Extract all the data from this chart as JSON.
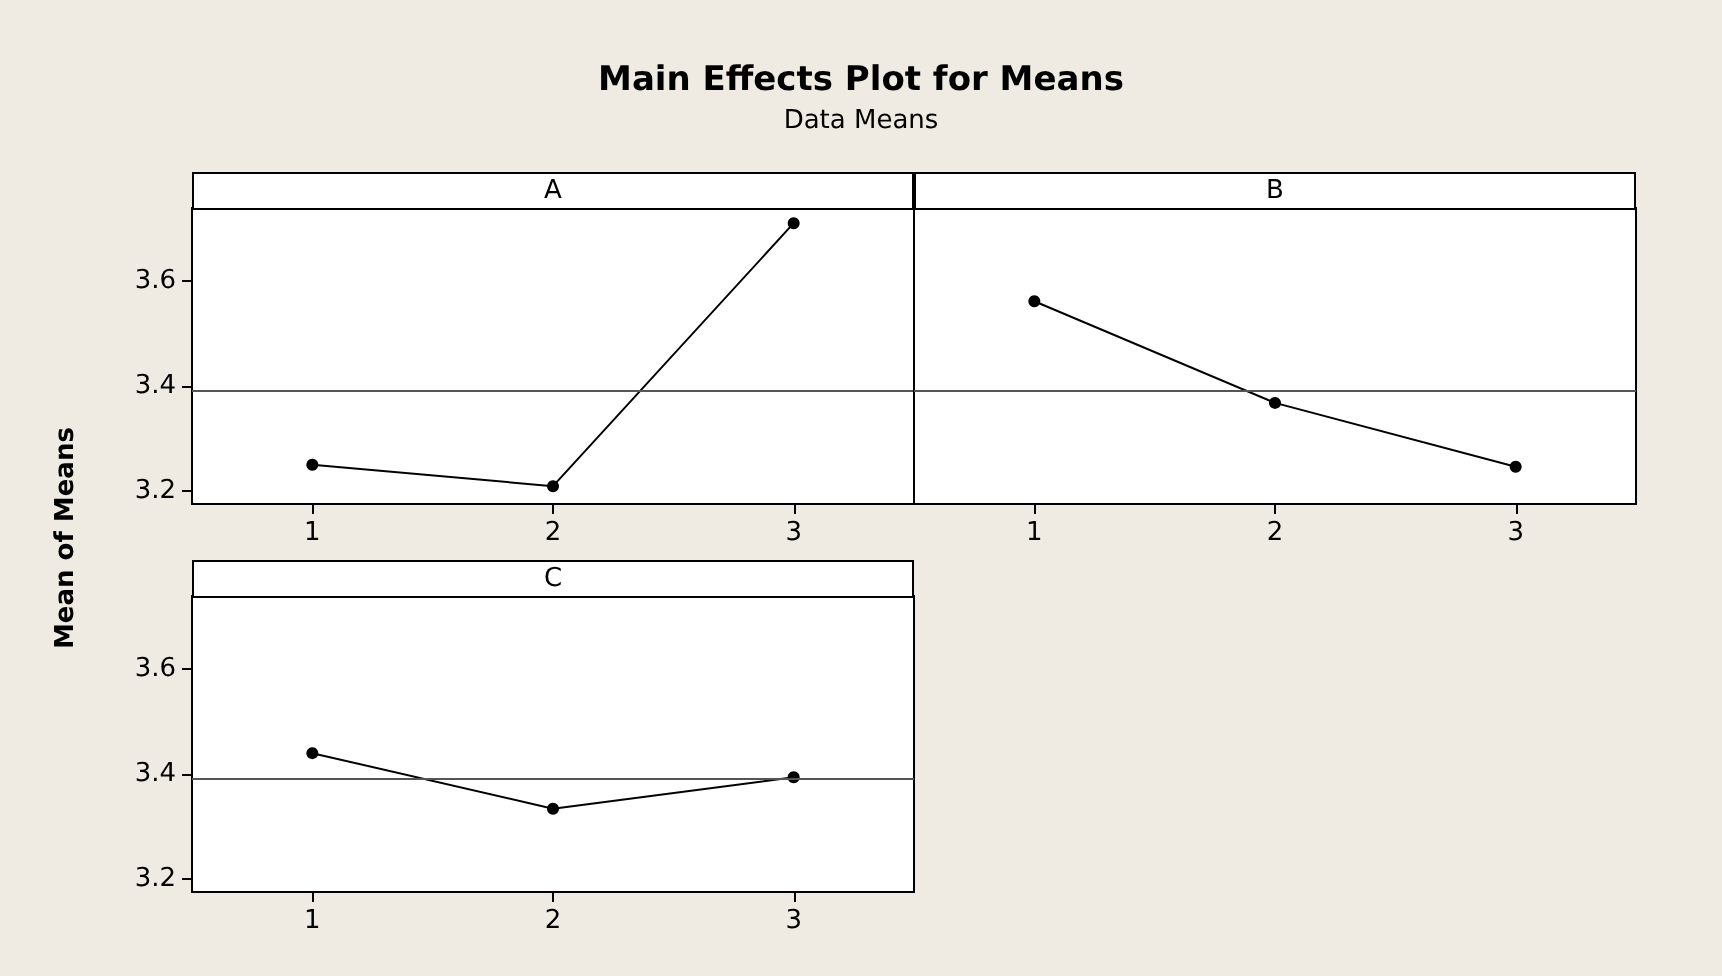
{
  "chart_data": [
    {
      "type": "line",
      "title": "A",
      "annotations": [
        "Main Effects Plot for Means",
        "Data Means"
      ],
      "ylabel": "Mean of Means",
      "categories": [
        "1",
        "2",
        "3"
      ],
      "series": [
        {
          "color": "#000000",
          "values": [
            3.25,
            3.209,
            3.711
          ]
        }
      ],
      "ylim": [
        3.175,
        3.74
      ],
      "yticks": [
        3.2,
        3.4,
        3.6
      ],
      "ref_lines": [
        {
          "axis": "y",
          "value": 3.39,
          "color": "#555555"
        }
      ],
      "marker": "circle",
      "line_style": "solid",
      "grid": false
    },
    {
      "type": "line",
      "title": "B",
      "categories": [
        "1",
        "2",
        "3"
      ],
      "series": [
        {
          "color": "#000000",
          "values": [
            3.562,
            3.368,
            3.246
          ]
        }
      ],
      "ylim": [
        3.175,
        3.74
      ],
      "yticks": [
        3.2,
        3.4,
        3.6
      ],
      "ref_lines": [
        {
          "axis": "y",
          "value": 3.39,
          "color": "#555555"
        }
      ],
      "marker": "circle",
      "line_style": "solid",
      "grid": false,
      "tick_labels": "x"
    },
    {
      "type": "line",
      "title": "C",
      "categories": [
        "1",
        "2",
        "3"
      ],
      "series": [
        {
          "color": "#000000",
          "values": [
            3.44,
            3.334,
            3.394
          ]
        }
      ],
      "ylim": [
        3.175,
        3.74
      ],
      "yticks": [
        3.2,
        3.4,
        3.6
      ],
      "ref_lines": [
        {
          "axis": "y",
          "value": 3.39,
          "color": "#555555"
        }
      ],
      "marker": "circle",
      "line_style": "solid",
      "grid": false
    }
  ]
}
